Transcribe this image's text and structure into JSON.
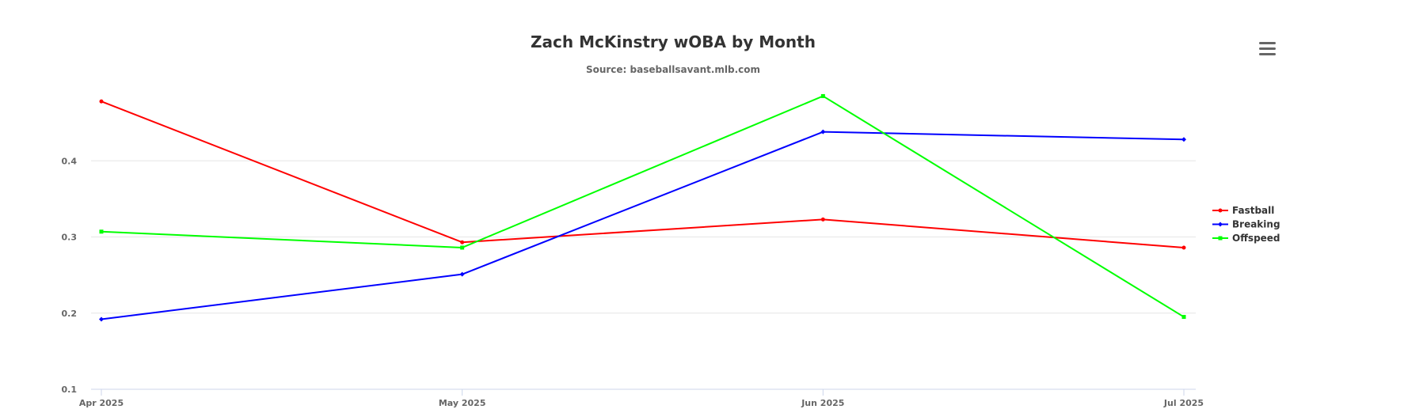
{
  "chart_data": {
    "type": "line",
    "title": "Zach McKinstry wOBA by Month",
    "subtitle": "Source: baseballsavant.mlb.com",
    "categories": [
      "Apr 2025",
      "May 2025",
      "Jun 2025",
      "Jul 2025"
    ],
    "y_ticks": [
      "0.1",
      "0.2",
      "0.3",
      "0.4"
    ],
    "ylim": [
      0.1,
      0.5
    ],
    "grid": true,
    "legend_position": "right",
    "series": [
      {
        "name": "Fastball",
        "color": "#ff0000",
        "marker": "circle",
        "values": [
          0.478,
          0.293,
          0.323,
          0.286
        ]
      },
      {
        "name": "Breaking",
        "color": "#0000ff",
        "marker": "diamond",
        "values": [
          0.192,
          0.251,
          0.438,
          0.428
        ]
      },
      {
        "name": "Offspeed",
        "color": "#00ff00",
        "marker": "square",
        "values": [
          0.307,
          0.286,
          0.485,
          0.195
        ]
      }
    ]
  },
  "menu": {
    "icon": "hamburger-menu-icon"
  }
}
